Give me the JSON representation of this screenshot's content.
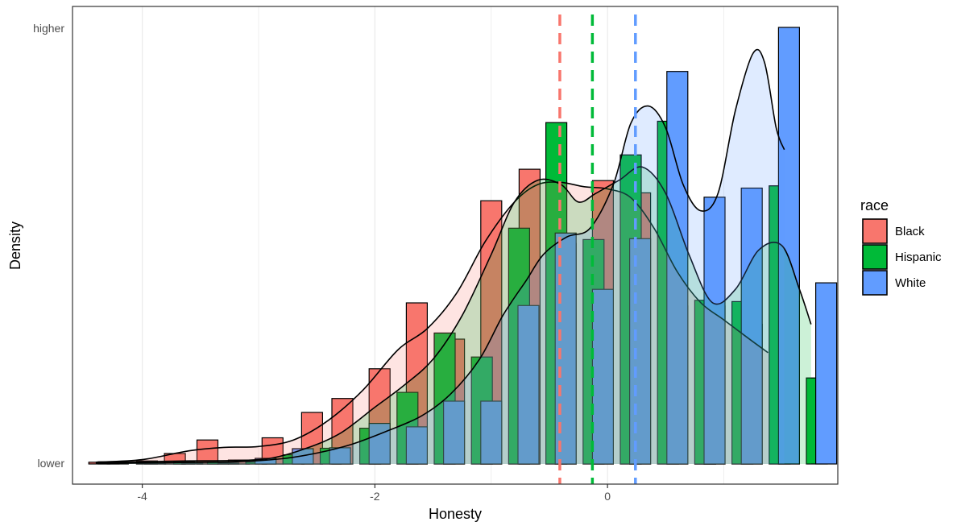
{
  "chart_data": {
    "type": "histogram",
    "xlabel": "Honesty",
    "ylabel": "Density",
    "xlim": [
      -4.6,
      1.98
    ],
    "ylim": [
      0,
      1
    ],
    "x_ticks": [
      -4,
      -2,
      0
    ],
    "x_tick_labels": [
      "-4",
      "-2",
      "0"
    ],
    "y_tick_labels": {
      "top": "higher",
      "bottom": "lower"
    },
    "grid": "vertical",
    "legend": {
      "title": "race",
      "position": "right"
    },
    "bin_width": 0.2,
    "series": [
      {
        "name": "Black",
        "color": "#F8766D",
        "mean": -0.41,
        "bins": [
          {
            "x": -4.37,
            "h": 0.004
          },
          {
            "x": -3.72,
            "h": 0.024
          },
          {
            "x": -3.44,
            "h": 0.055
          },
          {
            "x": -3.17,
            "h": 0.009
          },
          {
            "x": -2.88,
            "h": 0.06
          },
          {
            "x": -2.54,
            "h": 0.118
          },
          {
            "x": -2.28,
            "h": 0.15
          },
          {
            "x": -1.96,
            "h": 0.218
          },
          {
            "x": -1.64,
            "h": 0.369
          },
          {
            "x": -1.32,
            "h": 0.286
          },
          {
            "x": -1.0,
            "h": 0.603
          },
          {
            "x": -0.67,
            "h": 0.675
          },
          {
            "x": -0.36,
            "h": 0.505
          },
          {
            "x": -0.04,
            "h": 0.649
          },
          {
            "x": 0.28,
            "h": 0.621
          },
          {
            "x": 0.6,
            "h": 0.362
          },
          {
            "x": 0.92,
            "h": 0.362
          },
          {
            "x": 1.24,
            "h": 0.32
          },
          {
            "x": 1.56,
            "h": 0.133
          }
        ],
        "density": [
          [
            -4.4,
            0.004
          ],
          [
            -4.0,
            0.01
          ],
          [
            -3.6,
            0.03
          ],
          [
            -3.3,
            0.038
          ],
          [
            -3.0,
            0.04
          ],
          [
            -2.7,
            0.055
          ],
          [
            -2.4,
            0.1
          ],
          [
            -2.1,
            0.17
          ],
          [
            -1.8,
            0.262
          ],
          [
            -1.55,
            0.31
          ],
          [
            -1.3,
            0.39
          ],
          [
            -1.05,
            0.51
          ],
          [
            -0.8,
            0.6
          ],
          [
            -0.6,
            0.64
          ],
          [
            -0.4,
            0.645
          ],
          [
            -0.2,
            0.635
          ],
          [
            0.0,
            0.63
          ],
          [
            0.2,
            0.61
          ],
          [
            0.4,
            0.54
          ],
          [
            0.6,
            0.44
          ],
          [
            0.8,
            0.37
          ],
          [
            1.0,
            0.33
          ],
          [
            1.2,
            0.29
          ],
          [
            1.38,
            0.255
          ]
        ]
      },
      {
        "name": "Hispanic",
        "color": "#00BA38",
        "mean": -0.13,
        "bins": [
          {
            "x": -4.29,
            "h": 0.005
          },
          {
            "x": -3.96,
            "h": 0.007
          },
          {
            "x": -3.64,
            "h": 0.005
          },
          {
            "x": -3.35,
            "h": 0.004
          },
          {
            "x": -3.02,
            "h": 0.004
          },
          {
            "x": -2.7,
            "h": 0.021
          },
          {
            "x": -2.38,
            "h": 0.036
          },
          {
            "x": -2.04,
            "h": 0.082
          },
          {
            "x": -1.72,
            "h": 0.164
          },
          {
            "x": -1.4,
            "h": 0.3
          },
          {
            "x": -1.08,
            "h": 0.245
          },
          {
            "x": -0.76,
            "h": 0.54
          },
          {
            "x": -0.44,
            "h": 0.782
          },
          {
            "x": -0.12,
            "h": 0.514
          },
          {
            "x": 0.2,
            "h": 0.708
          },
          {
            "x": 0.52,
            "h": 0.785
          },
          {
            "x": 0.84,
            "h": 0.375
          },
          {
            "x": 1.16,
            "h": 0.372
          },
          {
            "x": 1.48,
            "h": 0.637
          },
          {
            "x": 1.8,
            "h": 0.197
          }
        ],
        "density": [
          [
            -4.4,
            0.003
          ],
          [
            -4.0,
            0.005
          ],
          [
            -3.6,
            0.007
          ],
          [
            -3.2,
            0.008
          ],
          [
            -2.9,
            0.013
          ],
          [
            -2.6,
            0.035
          ],
          [
            -2.3,
            0.07
          ],
          [
            -2.0,
            0.13
          ],
          [
            -1.75,
            0.18
          ],
          [
            -1.5,
            0.24
          ],
          [
            -1.25,
            0.34
          ],
          [
            -1.0,
            0.48
          ],
          [
            -0.8,
            0.6
          ],
          [
            -0.6,
            0.65
          ],
          [
            -0.4,
            0.64
          ],
          [
            -0.25,
            0.6
          ],
          [
            -0.1,
            0.62
          ],
          [
            0.1,
            0.65
          ],
          [
            0.3,
            0.68
          ],
          [
            0.5,
            0.62
          ],
          [
            0.7,
            0.48
          ],
          [
            0.9,
            0.37
          ],
          [
            1.1,
            0.4
          ],
          [
            1.3,
            0.49
          ],
          [
            1.5,
            0.5
          ],
          [
            1.65,
            0.4
          ],
          [
            1.75,
            0.32
          ]
        ]
      },
      {
        "name": "White",
        "color": "#619CFF",
        "mean": 0.24,
        "bins": [
          {
            "x": -4.21,
            "h": 0.002
          },
          {
            "x": -3.89,
            "h": 0.002
          },
          {
            "x": -3.57,
            "h": 0.002
          },
          {
            "x": -3.26,
            "h": 0.002
          },
          {
            "x": -2.94,
            "h": 0.013
          },
          {
            "x": -2.62,
            "h": 0.035
          },
          {
            "x": -2.3,
            "h": 0.037
          },
          {
            "x": -1.96,
            "h": 0.093
          },
          {
            "x": -1.64,
            "h": 0.085
          },
          {
            "x": -1.32,
            "h": 0.144
          },
          {
            "x": -1.0,
            "h": 0.144
          },
          {
            "x": -0.68,
            "h": 0.363
          },
          {
            "x": -0.36,
            "h": 0.529
          },
          {
            "x": -0.04,
            "h": 0.4
          },
          {
            "x": 0.28,
            "h": 0.516
          },
          {
            "x": 0.6,
            "h": 0.899
          },
          {
            "x": 0.92,
            "h": 0.611
          },
          {
            "x": 1.24,
            "h": 0.632
          },
          {
            "x": 1.56,
            "h": 1.0
          },
          {
            "x": 1.88,
            "h": 0.415
          }
        ],
        "density": [
          [
            -4.4,
            0.001
          ],
          [
            -3.8,
            0.003
          ],
          [
            -3.2,
            0.005
          ],
          [
            -2.8,
            0.012
          ],
          [
            -2.5,
            0.025
          ],
          [
            -2.2,
            0.045
          ],
          [
            -1.9,
            0.075
          ],
          [
            -1.6,
            0.11
          ],
          [
            -1.35,
            0.16
          ],
          [
            -1.1,
            0.24
          ],
          [
            -0.9,
            0.34
          ],
          [
            -0.7,
            0.42
          ],
          [
            -0.55,
            0.48
          ],
          [
            -0.35,
            0.52
          ],
          [
            -0.15,
            0.54
          ],
          [
            0.05,
            0.64
          ],
          [
            0.2,
            0.78
          ],
          [
            0.35,
            0.82
          ],
          [
            0.5,
            0.77
          ],
          [
            0.65,
            0.64
          ],
          [
            0.8,
            0.58
          ],
          [
            0.95,
            0.62
          ],
          [
            1.1,
            0.81
          ],
          [
            1.25,
            0.94
          ],
          [
            1.35,
            0.92
          ],
          [
            1.45,
            0.77
          ],
          [
            1.52,
            0.72
          ]
        ]
      }
    ]
  }
}
